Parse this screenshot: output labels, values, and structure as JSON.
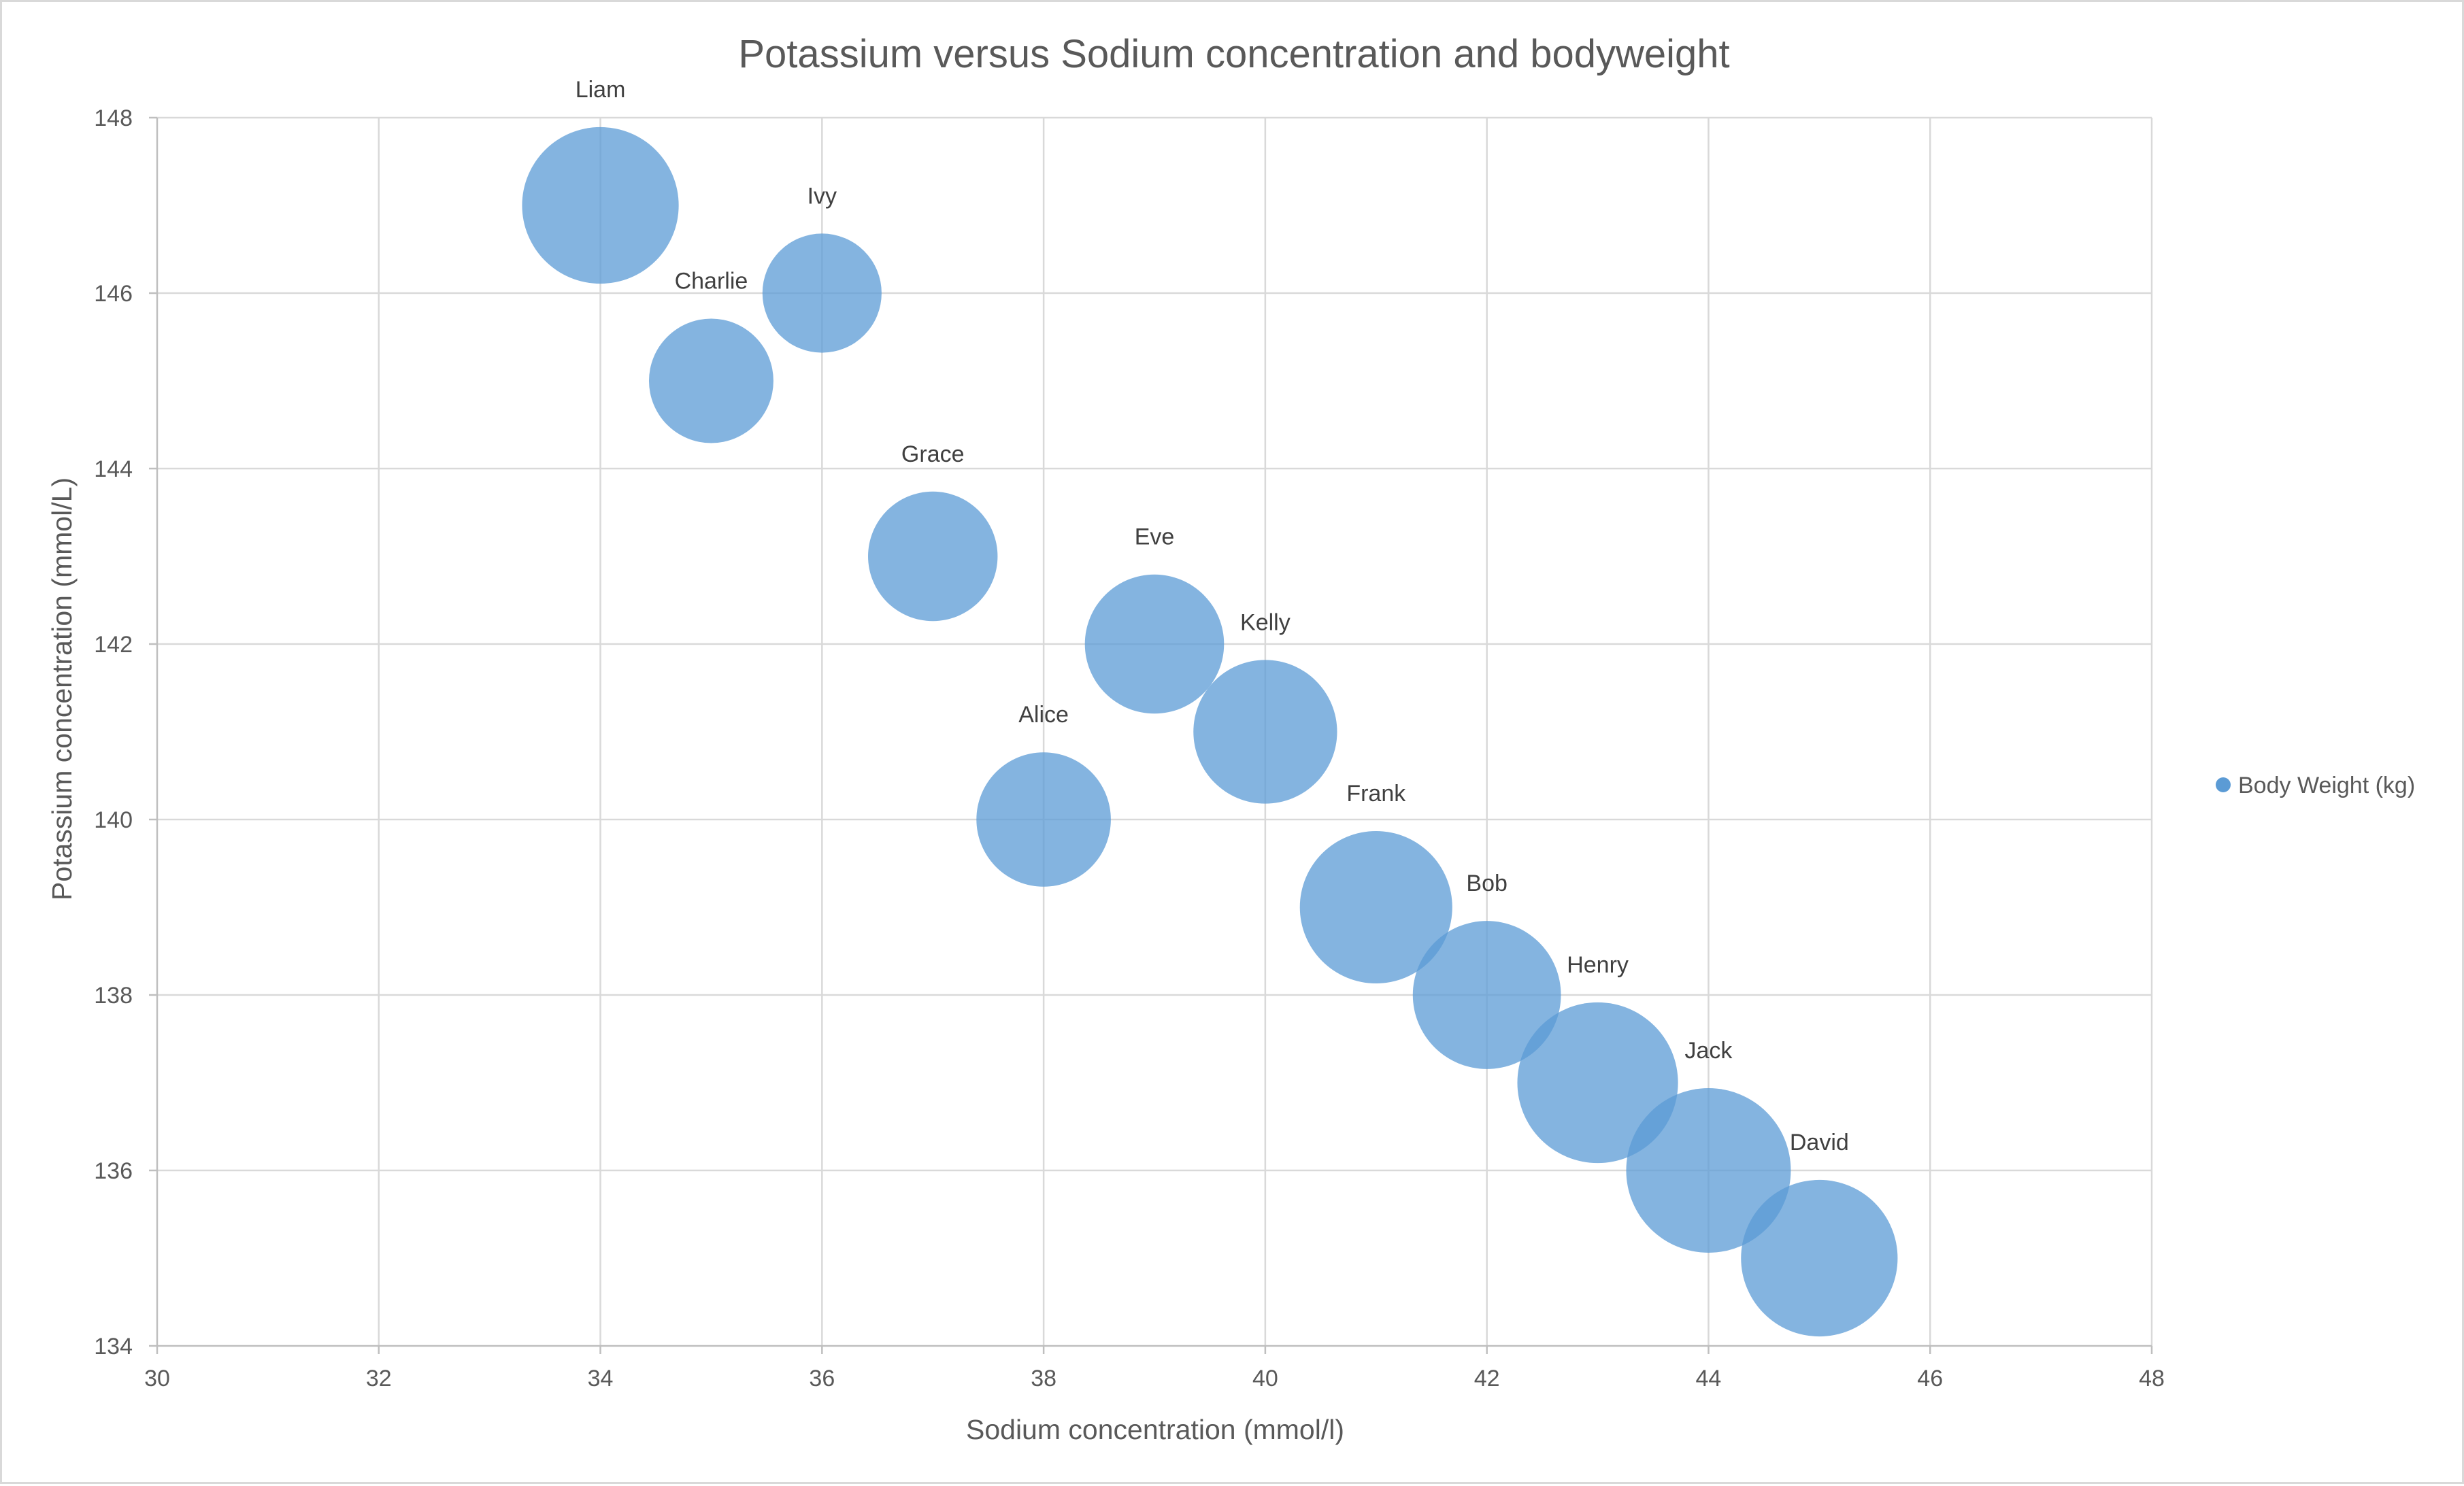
{
  "chart_data": {
    "type": "scatter",
    "variant": "bubble",
    "title": "Potassium versus Sodium concentration and bodyweight",
    "xlabel": "Sodium concentration (mmol/l)",
    "ylabel": "Potassium concentration (mmol/L)",
    "xlim": [
      30,
      48
    ],
    "ylim": [
      134,
      148
    ],
    "xticks": [
      30,
      32,
      34,
      36,
      38,
      40,
      42,
      44,
      46,
      48
    ],
    "yticks": [
      134,
      136,
      138,
      140,
      142,
      144,
      146,
      148
    ],
    "grid": true,
    "legend": {
      "position": "right",
      "entries": [
        "Body Weight (kg)"
      ]
    },
    "bubble_color": "#5B9BD5",
    "series": [
      {
        "name": "Body Weight (kg)",
        "points": [
          {
            "label": "Liam",
            "x": 34,
            "y": 147,
            "size": 95
          },
          {
            "label": "Ivy",
            "x": 36,
            "y": 146,
            "size": 55
          },
          {
            "label": "Charlie",
            "x": 35,
            "y": 145,
            "size": 60
          },
          {
            "label": "Grace",
            "x": 37,
            "y": 143,
            "size": 65
          },
          {
            "label": "Eve",
            "x": 39,
            "y": 142,
            "size": 75
          },
          {
            "label": "Kelly",
            "x": 40,
            "y": 141,
            "size": 80
          },
          {
            "label": "Alice",
            "x": 38,
            "y": 140,
            "size": 70
          },
          {
            "label": "Frank",
            "x": 41,
            "y": 139,
            "size": 90
          },
          {
            "label": "Bob",
            "x": 42,
            "y": 138,
            "size": 85
          },
          {
            "label": "Henry",
            "x": 43,
            "y": 137,
            "size": 100
          },
          {
            "label": "Jack",
            "x": 44,
            "y": 136,
            "size": 105
          },
          {
            "label": "David",
            "x": 45,
            "y": 135,
            "size": 95
          }
        ]
      }
    ]
  }
}
